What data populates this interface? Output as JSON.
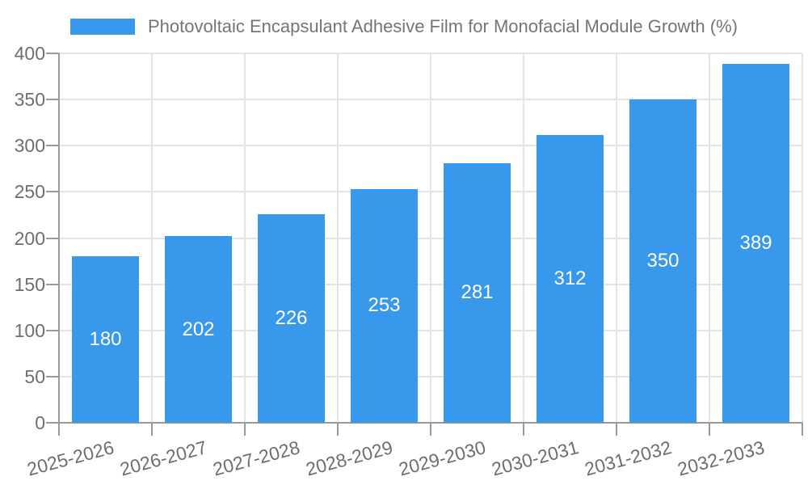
{
  "chart_data": {
    "type": "bar",
    "title": "Photovoltaic Encapsulant Adhesive Film for Monofacial Module Growth (%)",
    "categories": [
      "2025-2026",
      "2026-2027",
      "2027-2028",
      "2028-2029",
      "2029-2030",
      "2030-2031",
      "2031-2032",
      "2032-2033"
    ],
    "values": [
      180,
      202,
      226,
      253,
      281,
      312,
      350,
      389
    ],
    "xlabel": "",
    "ylabel": "",
    "ylim": [
      0,
      400
    ],
    "ytick_step": 50,
    "ytick_labels": [
      "0",
      "50",
      "100",
      "150",
      "200",
      "250",
      "300",
      "350",
      "400"
    ],
    "grid": true,
    "legend_position": "top-center",
    "x_label_rotation_deg": -15,
    "colors": {
      "bar": "#3898ec",
      "grid": "#e4e4e4",
      "axis": "#999999",
      "tick_text": "#6e6e6e",
      "legend_text": "#757575",
      "value_label": "#ffffff",
      "background": "#ffffff"
    }
  }
}
